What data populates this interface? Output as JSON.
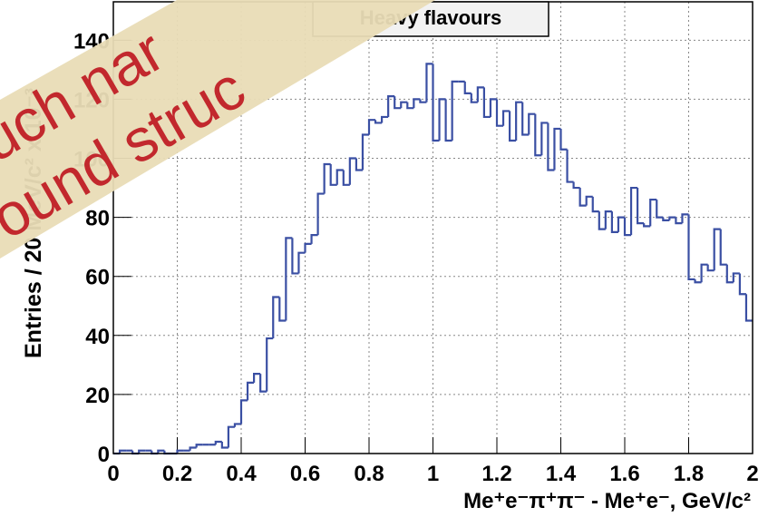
{
  "chart_data": {
    "type": "histogram",
    "legend_label": "Heavy flavours",
    "xlabel": "Me⁺e⁻π⁺π⁻ - Me⁺e⁻, GeV/c²",
    "ylabel": "Entries / 20 MeV/c² x 10⁻³",
    "color": "#3a4fa3",
    "grid": true,
    "bins": [
      0,
      0.02,
      0.04,
      0.06,
      0.08,
      0.1,
      0.12,
      0.14,
      0.16,
      0.18,
      0.2,
      0.22,
      0.24,
      0.26,
      0.28,
      0.3,
      0.32,
      0.34,
      0.36,
      0.38,
      0.4,
      0.42,
      0.44,
      0.46,
      0.48,
      0.5,
      0.52,
      0.54,
      0.56,
      0.58,
      0.6,
      0.62,
      0.64,
      0.66,
      0.68,
      0.7,
      0.72,
      0.74,
      0.76,
      0.78,
      0.8,
      0.82,
      0.84,
      0.86,
      0.88,
      0.9,
      0.92,
      0.94,
      0.96,
      0.98,
      1,
      1.02,
      1.04,
      1.06,
      1.08,
      1.1,
      1.12,
      1.14,
      1.16,
      1.18,
      1.2,
      1.22,
      1.24,
      1.26,
      1.28,
      1.3,
      1.32,
      1.34,
      1.36,
      1.38,
      1.4,
      1.42,
      1.44,
      1.46,
      1.48,
      1.5,
      1.52,
      1.54,
      1.56,
      1.58,
      1.6,
      1.62,
      1.64,
      1.66,
      1.68,
      1.7,
      1.72,
      1.74,
      1.76,
      1.78,
      1.8,
      1.82,
      1.84,
      1.86,
      1.88,
      1.9,
      1.92,
      1.94,
      1.96,
      1.98,
      2
    ],
    "values": [
      0,
      1,
      1,
      0,
      1,
      1,
      0,
      1,
      0,
      0,
      1,
      1,
      2,
      3,
      3,
      3,
      4,
      2,
      9,
      10,
      18,
      24,
      27,
      21,
      39,
      53,
      45,
      73,
      61,
      68,
      71,
      74,
      88,
      98,
      91,
      96,
      91,
      100,
      96,
      108,
      113,
      112,
      114,
      121,
      117,
      119,
      117,
      120,
      119,
      132,
      106,
      120,
      106,
      126,
      126,
      122,
      119,
      124,
      114,
      120,
      111,
      116,
      106,
      119,
      108,
      115,
      101,
      112,
      96,
      110,
      103,
      92,
      90,
      84,
      87,
      82,
      76,
      82,
      75,
      80,
      74,
      90,
      78,
      77,
      86,
      80,
      79,
      80,
      78,
      81,
      59,
      58,
      64,
      62,
      76,
      64,
      58,
      61,
      54,
      45
    ],
    "xlim": [
      0,
      2
    ],
    "xticks": [
      0,
      0.2,
      0.4,
      0.6,
      0.8,
      1,
      1.2,
      1.4,
      1.6,
      1.8,
      2
    ],
    "ylim": [
      0,
      153
    ],
    "yticks": [
      0,
      20,
      40,
      60,
      80,
      100,
      120,
      140
    ],
    "banner": {
      "line1": "uch nar",
      "line2": "ound struc"
    }
  }
}
